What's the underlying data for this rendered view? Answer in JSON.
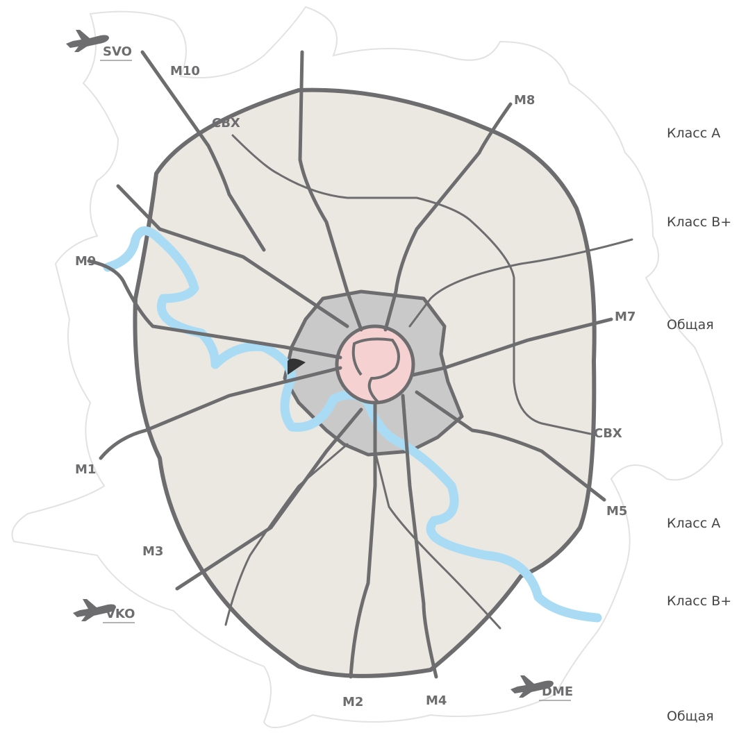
{
  "road_labels": [
    "M10",
    "СВХ",
    "M8",
    "M9",
    "M7",
    "СВХ",
    "M1",
    "M5",
    "M3",
    "M2",
    "M4"
  ],
  "airports": [
    "SVO",
    "VKO",
    "DME"
  ],
  "legend": [
    "Класс А",
    "Класс В+",
    "Общая",
    "Класс А",
    "Класс В+",
    "Общая"
  ]
}
